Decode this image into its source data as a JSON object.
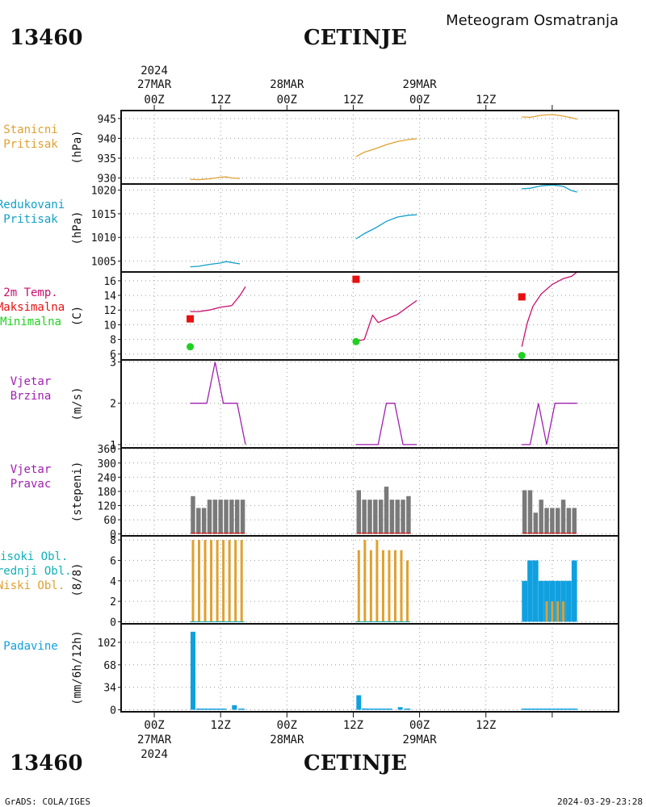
{
  "header": {
    "station_id": "13460",
    "station_name": "CETINJE",
    "title": "Meteogram Osmatranja"
  },
  "footer": {
    "station_id": "13460",
    "station_name": "CETINJE",
    "credit": "GrADS: COLA/IGES",
    "timestamp": "2024-03-29-23:28"
  },
  "time_axis": {
    "year": "2024",
    "days": [
      "27MAR",
      "28MAR",
      "29MAR"
    ],
    "top_ticks": [
      "00Z",
      "12Z",
      "00Z",
      "12Z",
      "00Z",
      "12Z"
    ],
    "bottom_ticks": [
      "00Z",
      "12Z",
      "00Z",
      "12Z",
      "00Z",
      "12Z"
    ]
  },
  "colors": {
    "orange": "#e0a030",
    "cyan": "#10a0c8",
    "magenta": "#c8106e",
    "red": "#e81010",
    "green": "#20d020",
    "purple": "#a020b0",
    "gray": "#7a7a7a",
    "blue": "#10a0e0",
    "teal": "#10b0b8",
    "grid": "#9a9a9a"
  },
  "panels": {
    "pressure": {
      "label_lines": [
        "Stanicni",
        "Pritisak"
      ],
      "unit": "(hPa)",
      "yticks": [
        "930",
        "935",
        "940",
        "945"
      ]
    },
    "reduced": {
      "label_lines": [
        "Redukovani",
        "Pritisak"
      ],
      "unit": "(hPa)",
      "yticks": [
        "1005",
        "1010",
        "1015",
        "1020"
      ]
    },
    "temp": {
      "label_lines": [
        "2m Temp.",
        "Maksimalna",
        "Minimalna"
      ],
      "unit": "(C)",
      "yticks": [
        "6",
        "8",
        "10",
        "12",
        "14",
        "16"
      ]
    },
    "wind_speed": {
      "label_lines": [
        "Vjetar",
        "Brzina"
      ],
      "unit": "(m/s)",
      "yticks": [
        "1",
        "2",
        "3"
      ]
    },
    "wind_dir": {
      "label_lines": [
        "Vjetar",
        "Pravac"
      ],
      "unit": "(stepeni)",
      "yticks": [
        "0",
        "60",
        "120",
        "180",
        "240",
        "300",
        "360"
      ]
    },
    "clouds": {
      "label_lines": [
        "Visoki Obl.",
        "Srednji Obl.",
        "Niski Obl."
      ],
      "unit": "(8/8)",
      "yticks": [
        "0",
        "2",
        "4",
        "6",
        "8"
      ]
    },
    "precip": {
      "label_lines": [
        "Padavine"
      ],
      "unit": "(mm/6h/12h)",
      "yticks": [
        "0",
        "34",
        "68",
        "102"
      ]
    }
  },
  "chart_data": {
    "type": "line",
    "x_unit": "hours since 2024-03-27 00Z",
    "xlim": [
      -6,
      84
    ],
    "station_pressure": {
      "unit": "hPa",
      "ylim": [
        928.5,
        947
      ],
      "segments": [
        [
          [
            6.5,
            929.7
          ],
          [
            8,
            929.6
          ],
          [
            10,
            929.8
          ],
          [
            12,
            930.2
          ],
          [
            13,
            930.3
          ],
          [
            14,
            930.0
          ],
          [
            15.5,
            929.9
          ]
        ],
        [
          [
            36.5,
            935.4
          ],
          [
            38,
            936.5
          ],
          [
            40,
            937.4
          ],
          [
            42,
            938.4
          ],
          [
            44,
            939.2
          ],
          [
            46,
            939.7
          ],
          [
            47.5,
            939.9
          ]
        ],
        [
          [
            66.5,
            945.4
          ],
          [
            68,
            945.3
          ],
          [
            70,
            945.8
          ],
          [
            72,
            946.0
          ],
          [
            74,
            945.6
          ],
          [
            75.5,
            945.2
          ],
          [
            76.5,
            944.8
          ]
        ]
      ]
    },
    "reduced_pressure": {
      "unit": "hPa",
      "ylim": [
        1002.7,
        1021.3
      ],
      "segments": [
        [
          [
            6.5,
            1003.8
          ],
          [
            8,
            1003.9
          ],
          [
            10,
            1004.3
          ],
          [
            12,
            1004.6
          ],
          [
            13,
            1004.9
          ],
          [
            14,
            1004.7
          ],
          [
            15.5,
            1004.4
          ]
        ],
        [
          [
            36.5,
            1009.7
          ],
          [
            38,
            1010.8
          ],
          [
            40,
            1012.0
          ],
          [
            42,
            1013.4
          ],
          [
            44,
            1014.3
          ],
          [
            46,
            1014.7
          ],
          [
            47.5,
            1014.8
          ]
        ],
        [
          [
            66.5,
            1020.3
          ],
          [
            68,
            1020.4
          ],
          [
            70,
            1020.9
          ],
          [
            72,
            1021.1
          ],
          [
            74,
            1020.8
          ],
          [
            75.5,
            1019.9
          ],
          [
            76.5,
            1019.6
          ]
        ]
      ]
    },
    "temperature_2m": {
      "unit": "C",
      "ylim": [
        5.2,
        17.2
      ],
      "segments": [
        [
          [
            6.5,
            11.8
          ],
          [
            8,
            11.8
          ],
          [
            10,
            12.0
          ],
          [
            12,
            12.4
          ],
          [
            14,
            12.6
          ],
          [
            15.5,
            14.0
          ],
          [
            16.5,
            15.2
          ]
        ],
        [
          [
            36.5,
            7.8
          ],
          [
            37.5,
            7.9
          ],
          [
            38,
            8.0
          ],
          [
            39.5,
            11.3
          ],
          [
            40.5,
            10.3
          ],
          [
            42,
            10.8
          ],
          [
            44,
            11.4
          ],
          [
            46,
            12.5
          ],
          [
            47.5,
            13.3
          ]
        ],
        [
          [
            66.5,
            7.0
          ],
          [
            67.5,
            10.3
          ],
          [
            68.5,
            12.5
          ],
          [
            70,
            14.2
          ],
          [
            72,
            15.5
          ],
          [
            74,
            16.3
          ],
          [
            75.5,
            16.6
          ],
          [
            76.5,
            17.2
          ]
        ]
      ],
      "max_points": [
        [
          6.5,
          10.8
        ],
        [
          36.5,
          16.2
        ],
        [
          66.5,
          13.8
        ]
      ],
      "min_points": [
        [
          6.5,
          7.0
        ],
        [
          36.5,
          7.7
        ],
        [
          66.5,
          5.8
        ]
      ]
    },
    "wind_speed": {
      "unit": "m/s",
      "ylim": [
        0.92,
        3.05
      ],
      "segments": [
        [
          [
            6.5,
            2
          ],
          [
            9.5,
            2
          ],
          [
            11,
            3
          ],
          [
            12.5,
            2
          ],
          [
            15,
            2
          ],
          [
            16.5,
            1
          ]
        ],
        [
          [
            36.5,
            1
          ],
          [
            40.5,
            1
          ],
          [
            42,
            2
          ],
          [
            43.5,
            2
          ],
          [
            45,
            1
          ],
          [
            47.5,
            1
          ]
        ],
        [
          [
            66.5,
            1
          ],
          [
            68,
            1
          ],
          [
            69.5,
            2
          ],
          [
            71,
            1
          ],
          [
            72.5,
            2
          ],
          [
            76.5,
            2
          ]
        ]
      ]
    },
    "wind_direction": {
      "unit": "degrees",
      "ylim": [
        -8,
        364
      ],
      "bars": [
        [
          [
            7,
            160
          ],
          [
            8,
            110
          ],
          [
            9,
            110
          ],
          [
            10,
            145
          ],
          [
            11,
            145
          ],
          [
            12,
            145
          ],
          [
            13,
            145
          ],
          [
            14,
            145
          ],
          [
            15,
            145
          ],
          [
            16,
            145
          ]
        ],
        [
          [
            37,
            185
          ],
          [
            38,
            145
          ],
          [
            39,
            145
          ],
          [
            40,
            145
          ],
          [
            41,
            145
          ],
          [
            42,
            200
          ],
          [
            43,
            145
          ],
          [
            44,
            145
          ],
          [
            45,
            145
          ],
          [
            46,
            160
          ]
        ],
        [
          [
            67,
            185
          ],
          [
            68,
            185
          ],
          [
            69,
            90
          ],
          [
            70,
            145
          ],
          [
            71,
            110
          ],
          [
            72,
            110
          ],
          [
            73,
            110
          ],
          [
            74,
            145
          ],
          [
            75,
            110
          ],
          [
            76,
            110
          ]
        ]
      ]
    },
    "clouds": {
      "unit": "octas",
      "ylim": [
        -0.2,
        8.4
      ],
      "low_bars": [
        [
          [
            7,
            8
          ],
          [
            8.1,
            8
          ],
          [
            9.2,
            8
          ],
          [
            10.3,
            8
          ],
          [
            11.4,
            8
          ],
          [
            12.5,
            8
          ],
          [
            13.6,
            8
          ],
          [
            14.7,
            8
          ],
          [
            15.8,
            8
          ]
        ],
        [
          [
            37,
            7
          ],
          [
            38.1,
            8
          ],
          [
            39.2,
            7
          ],
          [
            40.3,
            8
          ],
          [
            41.4,
            7
          ],
          [
            42.5,
            7
          ],
          [
            43.6,
            7
          ],
          [
            44.7,
            7
          ],
          [
            45.8,
            6
          ]
        ]
      ],
      "high_bars": [
        [
          [
            67,
            4
          ],
          [
            68,
            6
          ],
          [
            69,
            6
          ],
          [
            70,
            4
          ],
          [
            71,
            4
          ],
          [
            72,
            4
          ],
          [
            73,
            4
          ],
          [
            74,
            4
          ],
          [
            75,
            4
          ],
          [
            76,
            6
          ]
        ]
      ],
      "low_bars_day3": [
        [
          71,
          2
        ],
        [
          72,
          2
        ],
        [
          73,
          2
        ],
        [
          74,
          2
        ]
      ]
    },
    "precipitation": {
      "unit": "mm/6h/12h",
      "ylim": [
        -3,
        130
      ],
      "bars": [
        [
          7,
          118
        ],
        [
          8.1,
          1
        ],
        [
          9.2,
          1
        ],
        [
          10.3,
          1
        ],
        [
          11.4,
          1
        ],
        [
          12.5,
          1
        ],
        [
          14.5,
          7
        ],
        [
          15.8,
          1
        ],
        [
          37,
          22
        ],
        [
          38.1,
          2
        ],
        [
          39.2,
          1
        ],
        [
          40.3,
          1
        ],
        [
          41.4,
          1
        ],
        [
          42.5,
          1
        ],
        [
          44.5,
          4
        ],
        [
          45.8,
          1
        ],
        [
          67,
          1
        ],
        [
          68,
          1
        ],
        [
          69,
          1
        ],
        [
          70,
          1
        ],
        [
          71,
          1
        ],
        [
          72,
          1
        ],
        [
          73,
          1
        ],
        [
          74,
          1
        ],
        [
          75,
          1
        ],
        [
          76,
          1
        ]
      ]
    }
  }
}
